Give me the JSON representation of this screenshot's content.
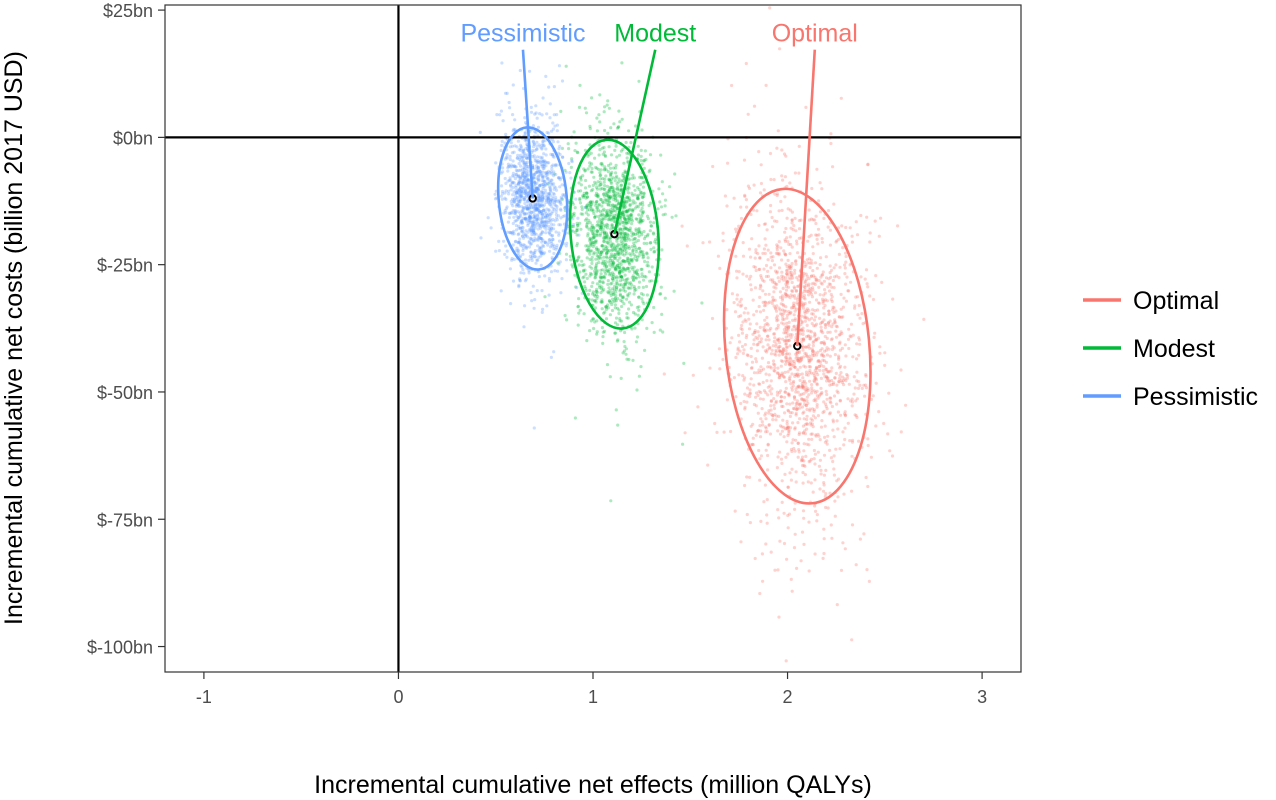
{
  "chart_data": {
    "type": "scatter",
    "title": "",
    "xlabel": "Incremental cumulative net effects (million QALYs)",
    "ylabel": "Incremental cumulative net costs (billion 2017 USD)",
    "xlim": [
      -1.2,
      3.2
    ],
    "ylim": [
      -105,
      26
    ],
    "x_ticks": [
      {
        "value": -1,
        "label": "-1"
      },
      {
        "value": 0,
        "label": "0"
      },
      {
        "value": 1,
        "label": "1"
      },
      {
        "value": 2,
        "label": "2"
      },
      {
        "value": 3,
        "label": "3"
      }
    ],
    "y_ticks": [
      {
        "value": 25,
        "label": "$25bn"
      },
      {
        "value": 0,
        "label": "$0bn"
      },
      {
        "value": -25,
        "label": "$-25bn"
      },
      {
        "value": -50,
        "label": "$-50bn"
      },
      {
        "value": -75,
        "label": "$-75bn"
      },
      {
        "value": -100,
        "label": "$-100bn"
      }
    ],
    "reference_lines": {
      "x": 0,
      "y": 0
    },
    "grid": false,
    "legend_position": "right",
    "series": [
      {
        "name": "Optimal",
        "color": "#F8766D",
        "mean": [
          2.05,
          -41
        ],
        "ellipse": {
          "half_width": 0.37,
          "half_height": 31,
          "rotation_deg": -5.5
        },
        "spread": {
          "sd_x": 0.17,
          "sd_y": 15,
          "n": 1700
        },
        "label_anchor": [
          2.14,
          18
        ],
        "label": "Optimal"
      },
      {
        "name": "Modest",
        "color": "#00BA38",
        "mean": [
          1.11,
          -19
        ],
        "ellipse": {
          "half_width": 0.225,
          "half_height": 18.6,
          "rotation_deg": -5
        },
        "spread": {
          "sd_x": 0.105,
          "sd_y": 9.5,
          "n": 1400
        },
        "label_anchor": [
          1.32,
          18
        ],
        "label": "Modest"
      },
      {
        "name": "Pessimistic",
        "color": "#619CFF",
        "mean": [
          0.69,
          -12
        ],
        "ellipse": {
          "half_width": 0.175,
          "half_height": 14,
          "rotation_deg": -5
        },
        "spread": {
          "sd_x": 0.08,
          "sd_y": 7,
          "n": 1200
        },
        "label_anchor": [
          0.64,
          18
        ],
        "label": "Pessimistic"
      }
    ]
  }
}
